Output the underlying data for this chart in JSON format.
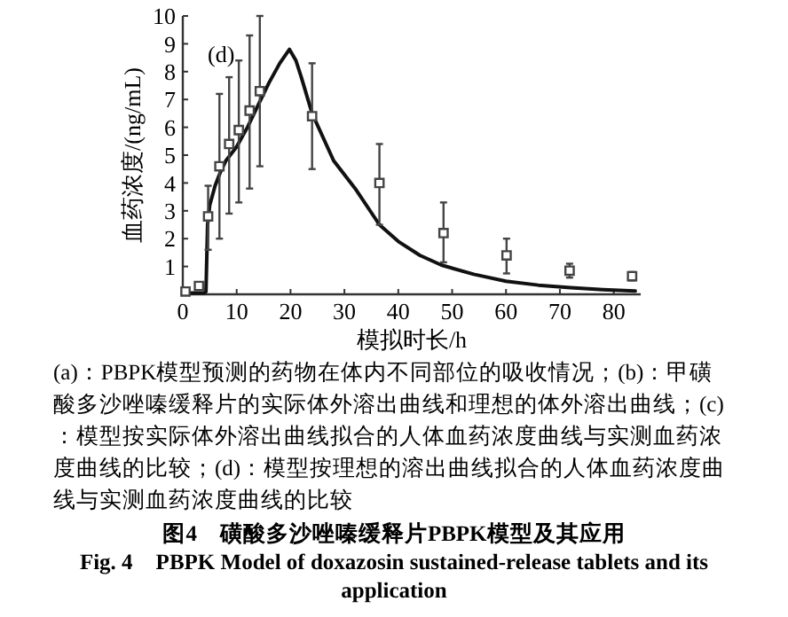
{
  "chart_data": {
    "type": "line",
    "xlabel": "模拟时长/h",
    "ylabel": "血药浓度/(ng/mL)",
    "xlim": [
      0,
      85
    ],
    "ylim": [
      0,
      10
    ],
    "xticks": [
      0,
      10,
      20,
      30,
      40,
      50,
      60,
      70,
      80
    ],
    "yticks": [
      {
        "value": 0,
        "label": null
      },
      1,
      2,
      3,
      4,
      5,
      6,
      7,
      8,
      9,
      10
    ],
    "grid": false,
    "series": [
      {
        "color": "#111111",
        "marker": "none",
        "line_style": "solid",
        "x": [
          0,
          2,
          4,
          4.3,
          4.6,
          5,
          6,
          7,
          8,
          10,
          12,
          14,
          16,
          18,
          19.8,
          21,
          22,
          24,
          28,
          32,
          36.5,
          40,
          44,
          48,
          54,
          60,
          66,
          72,
          78,
          84
        ],
        "values": [
          0.05,
          0.05,
          0.05,
          0.1,
          2.5,
          3.2,
          3.9,
          4.4,
          4.8,
          5.3,
          6.0,
          6.8,
          7.6,
          8.3,
          8.8,
          8.4,
          7.8,
          6.5,
          4.8,
          3.8,
          2.5,
          1.9,
          1.4,
          1.05,
          0.72,
          0.47,
          0.33,
          0.24,
          0.17,
          0.12
        ]
      },
      {
        "type": "scatter",
        "color": "#444444",
        "marker": "square",
        "x": [
          0.5,
          3,
          4.7,
          6.8,
          8.6,
          10.4,
          12.4,
          14.3,
          24,
          36.5,
          48.4,
          60.1,
          71.8,
          83.4
        ],
        "values": [
          0.1,
          0.3,
          2.8,
          4.6,
          5.4,
          5.9,
          6.6,
          7.3,
          6.4,
          4.0,
          2.2,
          1.4,
          0.85,
          0.65
        ],
        "errors": [
          null,
          null,
          [
            1.6,
            3.9
          ],
          [
            2.0,
            7.2
          ],
          [
            2.9,
            7.8
          ],
          [
            3.3,
            8.4
          ],
          [
            3.8,
            9.3
          ],
          [
            4.6,
            10.0
          ],
          [
            4.5,
            8.3
          ],
          [
            2.5,
            5.4
          ],
          [
            1.15,
            3.3
          ],
          [
            0.75,
            2.0
          ],
          [
            0.6,
            1.1
          ],
          [
            0.5,
            0.8
          ]
        ]
      }
    ],
    "annotations": [
      "(d)",
      "(a)：PBPK模型预测的药物在体内不同部位的吸收情况；(b)：甲磺酸多沙唑嗪缓释片的实际体外溶出曲线和理想的体外溶出曲线；(c)：模型按实际体外溶出曲线拟合的人体血药浓度曲线与实测血药浓度曲线的比较；(d)：模型按理想的溶出曲线拟合的人体血药浓度曲线与实测血药浓度曲线的比较",
      "图4　磺酸多沙唑嗪缓释片PBPK模型及其应用",
      "Fig. 4　PBPK Model of doxazosin sustained-release tablets and its application"
    ]
  }
}
